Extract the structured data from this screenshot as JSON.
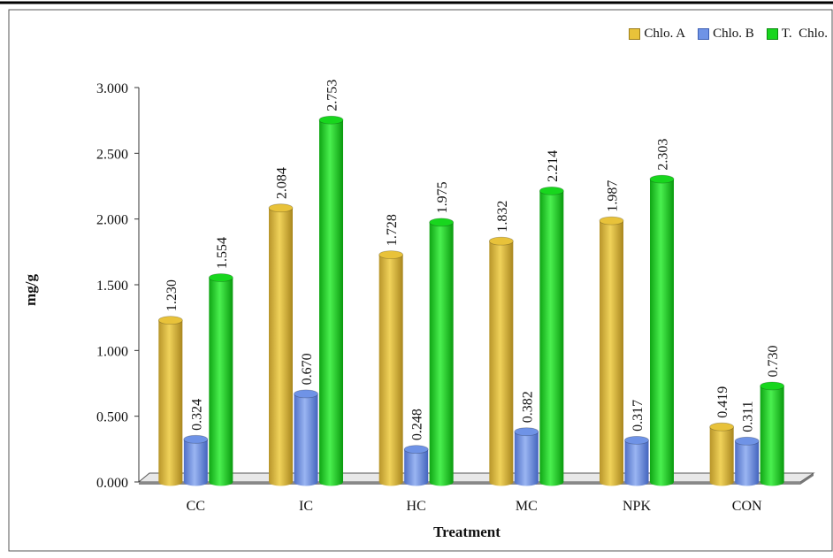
{
  "chart_data": {
    "type": "bar",
    "title": "",
    "xlabel": "Treatment",
    "ylabel": "mg/g",
    "ylim": [
      0,
      3.0
    ],
    "yticks": [
      "0.000",
      "0.500",
      "1.000",
      "1.500",
      "2.000",
      "2.500",
      "3.000"
    ],
    "categories": [
      "CC",
      "IC",
      "HC",
      "MC",
      "NPK",
      "CON"
    ],
    "legend_position": "top-right",
    "series": [
      {
        "name": "Chlo. A",
        "color": "#e8c23a",
        "values": [
          1.23,
          2.084,
          1.728,
          1.832,
          1.987,
          0.419
        ],
        "labels": [
          "1.230",
          "2.084",
          "1.728",
          "1.832",
          "1.987",
          "0.419"
        ]
      },
      {
        "name": "Chlo. B",
        "color": "#6f93e6",
        "values": [
          0.324,
          0.67,
          0.248,
          0.382,
          0.317,
          0.311
        ],
        "labels": [
          "0.324",
          "0.670",
          "0.248",
          "0.382",
          "0.317",
          "0.311"
        ]
      },
      {
        "name": "T.  Chlo.",
        "color": "#18d61e",
        "values": [
          1.554,
          2.753,
          1.975,
          2.214,
          2.303,
          0.73
        ],
        "labels": [
          "1.554",
          "2.753",
          "1.975",
          "2.214",
          "2.303",
          "0.730"
        ]
      }
    ]
  }
}
